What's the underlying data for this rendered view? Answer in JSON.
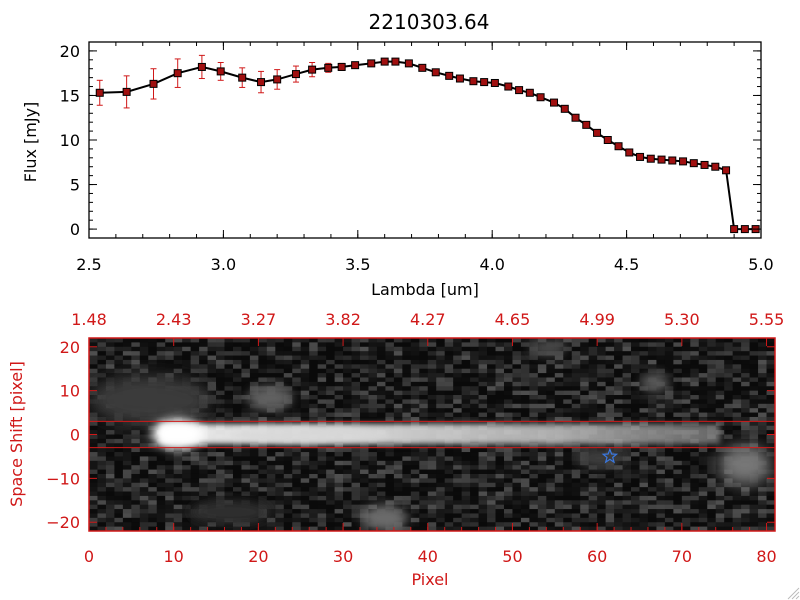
{
  "chart_data": [
    {
      "type": "line",
      "title": "2210303.64",
      "xlabel": "Lambda [um]",
      "ylabel": "Flux [mJy]",
      "xlim": [
        2.5,
        5.0
      ],
      "ylim": [
        -1,
        21
      ],
      "xticks": [
        "2.5",
        "3.0",
        "3.5",
        "4.0",
        "4.5",
        "5.0"
      ],
      "xtick_values": [
        2.5,
        3.0,
        3.5,
        4.0,
        4.5,
        5.0
      ],
      "yticks": [
        "0",
        "5",
        "10",
        "15",
        "20"
      ],
      "ytick_values": [
        0,
        5,
        10,
        15,
        20
      ],
      "line_color": "#000000",
      "marker_color": "#a01010",
      "errorbar_color": "#d01818",
      "series": [
        {
          "name": "flux",
          "x": [
            2.54,
            2.64,
            2.74,
            2.83,
            2.92,
            2.99,
            3.07,
            3.14,
            3.2,
            3.27,
            3.33,
            3.39,
            3.44,
            3.49,
            3.55,
            3.6,
            3.64,
            3.69,
            3.74,
            3.79,
            3.84,
            3.88,
            3.93,
            3.97,
            4.01,
            4.06,
            4.1,
            4.14,
            4.18,
            4.23,
            4.27,
            4.31,
            4.35,
            4.39,
            4.43,
            4.47,
            4.51,
            4.55,
            4.59,
            4.63,
            4.67,
            4.71,
            4.75,
            4.79,
            4.83,
            4.87,
            4.9,
            4.94,
            4.98
          ],
          "y": [
            15.3,
            15.4,
            16.3,
            17.5,
            18.2,
            17.7,
            17.0,
            16.5,
            16.8,
            17.4,
            17.9,
            18.1,
            18.2,
            18.4,
            18.6,
            18.8,
            18.8,
            18.6,
            18.1,
            17.6,
            17.2,
            16.9,
            16.6,
            16.5,
            16.4,
            16.0,
            15.6,
            15.3,
            14.8,
            14.2,
            13.5,
            12.5,
            11.7,
            10.8,
            10.0,
            9.3,
            8.6,
            8.1,
            7.9,
            7.8,
            7.7,
            7.6,
            7.4,
            7.2,
            7.0,
            6.6,
            0.0,
            0.0,
            0.0
          ],
          "yerr": [
            1.4,
            1.8,
            1.7,
            1.6,
            1.3,
            1.0,
            1.1,
            1.2,
            1.1,
            0.9,
            0.8,
            0.5,
            0.4,
            0.3,
            0.3,
            0.3,
            0.3,
            0.3,
            0.3,
            0.3,
            0.3,
            0.3,
            0.3,
            0.3,
            0.3,
            0.3,
            0.3,
            0.3,
            0.3,
            0.3,
            0.3,
            0.3,
            0.3,
            0.3,
            0.3,
            0.3,
            0.3,
            0.3,
            0.3,
            0.3,
            0.3,
            0.3,
            0.3,
            0.3,
            0.3,
            0.3,
            0.3,
            0.3,
            0.3
          ]
        }
      ]
    },
    {
      "type": "heatmap",
      "xlabel": "Pixel",
      "ylabel": "Space Shift [pixel]",
      "xlim": [
        0,
        81
      ],
      "ylim": [
        -22,
        22
      ],
      "xticks": [
        "0",
        "10",
        "20",
        "30",
        "40",
        "50",
        "60",
        "70",
        "80"
      ],
      "xtick_values": [
        0,
        10,
        20,
        30,
        40,
        50,
        60,
        70,
        80
      ],
      "yticks": [
        "−20",
        "−10",
        "0",
        "10",
        "20"
      ],
      "ytick_values": [
        -20,
        -10,
        0,
        10,
        20
      ],
      "top_axis_labels": [
        "1.48",
        "2.43",
        "3.27",
        "3.82",
        "4.27",
        "4.65",
        "4.99",
        "5.30",
        "5.55"
      ],
      "axis_color": "#d01818",
      "guide_lines_y": [
        3,
        -3
      ],
      "source_marker": {
        "x": 61.5,
        "y": -5,
        "color": "#3a78e0"
      }
    }
  ]
}
